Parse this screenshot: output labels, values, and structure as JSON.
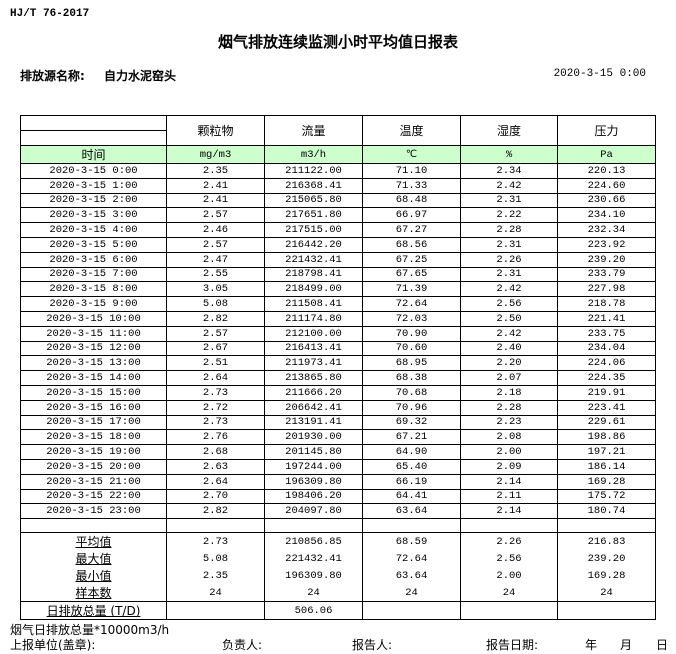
{
  "standard": "HJ/T  76-2017",
  "title": "烟气排放连续监测小时平均值日报表",
  "source_label": "排放源名称:",
  "source_name": "自力水泥窑头",
  "report_datetime": "2020-3-15 0:00",
  "table": {
    "headers": [
      "",
      "颗粒物",
      "流量",
      "温度",
      "湿度",
      "压力"
    ],
    "units": [
      "时间",
      "mg/m3",
      "m3/h",
      "℃",
      "%",
      "Pa"
    ],
    "unit_row_color": "#ccffcc",
    "rows": [
      [
        "2020-3-15 0:00",
        "2.35",
        "211122.00",
        "71.10",
        "2.34",
        "220.13"
      ],
      [
        "2020-3-15 1:00",
        "2.41",
        "216368.41",
        "71.33",
        "2.42",
        "224.60"
      ],
      [
        "2020-3-15 2:00",
        "2.41",
        "215065.80",
        "68.48",
        "2.31",
        "230.66"
      ],
      [
        "2020-3-15 3:00",
        "2.57",
        "217651.80",
        "66.97",
        "2.22",
        "234.10"
      ],
      [
        "2020-3-15 4:00",
        "2.46",
        "217515.00",
        "67.27",
        "2.28",
        "232.34"
      ],
      [
        "2020-3-15 5:00",
        "2.57",
        "216442.20",
        "68.56",
        "2.31",
        "223.92"
      ],
      [
        "2020-3-15 6:00",
        "2.47",
        "221432.41",
        "67.25",
        "2.26",
        "239.20"
      ],
      [
        "2020-3-15 7:00",
        "2.55",
        "218798.41",
        "67.65",
        "2.31",
        "233.79"
      ],
      [
        "2020-3-15 8:00",
        "3.05",
        "218499.00",
        "71.39",
        "2.42",
        "227.98"
      ],
      [
        "2020-3-15 9:00",
        "5.08",
        "211508.41",
        "72.64",
        "2.56",
        "218.78"
      ],
      [
        "2020-3-15 10:00",
        "2.82",
        "211174.80",
        "72.03",
        "2.50",
        "221.41"
      ],
      [
        "2020-3-15 11:00",
        "2.57",
        "212100.00",
        "70.90",
        "2.42",
        "233.75"
      ],
      [
        "2020-3-15 12:00",
        "2.67",
        "216413.41",
        "70.60",
        "2.40",
        "234.04"
      ],
      [
        "2020-3-15 13:00",
        "2.51",
        "211973.41",
        "68.95",
        "2.20",
        "224.06"
      ],
      [
        "2020-3-15 14:00",
        "2.64",
        "213865.80",
        "68.38",
        "2.07",
        "224.35"
      ],
      [
        "2020-3-15 15:00",
        "2.73",
        "211666.20",
        "70.68",
        "2.18",
        "219.91"
      ],
      [
        "2020-3-15 16:00",
        "2.72",
        "206642.41",
        "70.96",
        "2.28",
        "223.41"
      ],
      [
        "2020-3-15 17:00",
        "2.73",
        "213191.41",
        "69.32",
        "2.23",
        "229.61"
      ],
      [
        "2020-3-15 18:00",
        "2.76",
        "201930.00",
        "67.21",
        "2.08",
        "198.86"
      ],
      [
        "2020-3-15 19:00",
        "2.68",
        "201145.80",
        "64.90",
        "2.00",
        "197.21"
      ],
      [
        "2020-3-15 20:00",
        "2.63",
        "197244.00",
        "65.40",
        "2.09",
        "186.14"
      ],
      [
        "2020-3-15 21:00",
        "2.64",
        "196309.80",
        "66.19",
        "2.14",
        "169.28"
      ],
      [
        "2020-3-15 22:00",
        "2.70",
        "198406.20",
        "64.41",
        "2.11",
        "175.72"
      ],
      [
        "2020-3-15 23:00",
        "2.82",
        "204097.80",
        "63.64",
        "2.14",
        "180.74"
      ]
    ],
    "summary": [
      [
        "平均值",
        "2.73",
        "210856.85",
        "68.59",
        "2.26",
        "216.83"
      ],
      [
        "最大值",
        "5.08",
        "221432.41",
        "72.64",
        "2.56",
        "239.20"
      ],
      [
        "最小值",
        "2.35",
        "196309.80",
        "63.64",
        "2.00",
        "169.28"
      ],
      [
        "样本数",
        "24",
        "24",
        "24",
        "24",
        "24"
      ]
    ],
    "total": [
      "日排放总量 (T/D)",
      "",
      "506.06",
      "",
      "",
      ""
    ]
  },
  "footer": {
    "note": "烟气日排放总量*10000m3/h",
    "unit_label": "上报单位(盖章):",
    "responsible_label": "负责人:",
    "reporter_label": "报告人:",
    "report_date_label": "报告日期:",
    "year": "年",
    "month": "月",
    "day": "日"
  }
}
